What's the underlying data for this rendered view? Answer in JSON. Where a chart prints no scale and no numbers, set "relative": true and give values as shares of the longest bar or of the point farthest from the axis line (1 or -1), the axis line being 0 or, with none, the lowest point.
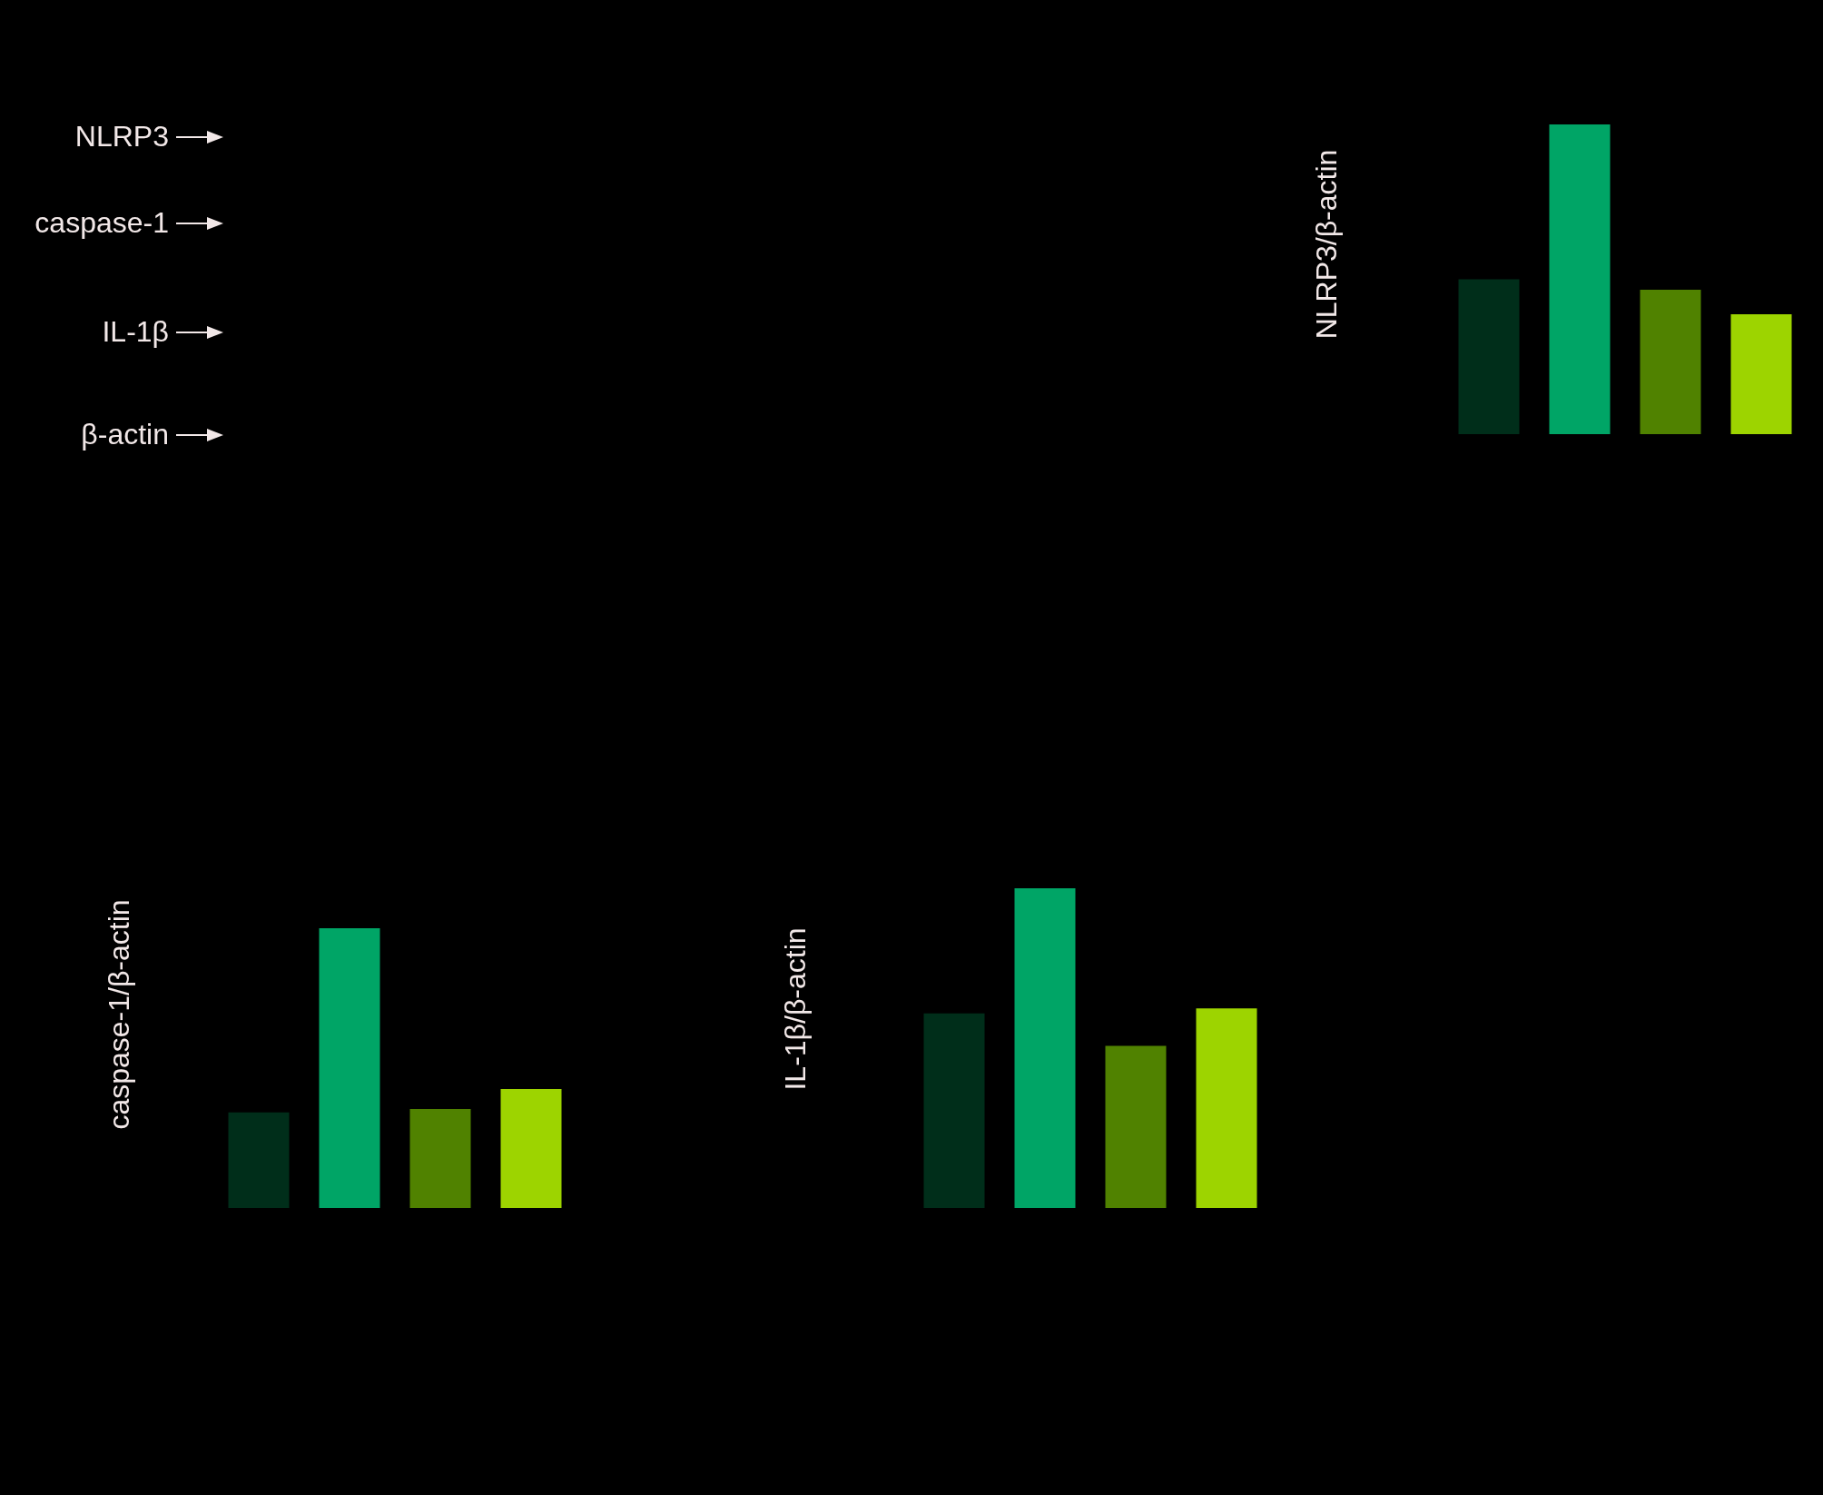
{
  "chart_data": [
    {
      "type": "other",
      "annotations": [
        "NLRP3",
        "caspase-1",
        "IL-1β",
        "β-actin"
      ]
    },
    {
      "type": "bar",
      "ylabel": "NLRP3/β-actin",
      "relative": true,
      "categories": [
        null,
        null,
        null,
        null
      ],
      "values": [
        0.5,
        1,
        0.466,
        0.387
      ],
      "colors": [
        "#002e1a",
        "#00a566",
        "#508200",
        "#9dd400"
      ]
    },
    {
      "type": "bar",
      "ylabel": "caspase-1/β-actin",
      "relative": true,
      "categories": [
        null,
        null,
        null,
        null
      ],
      "values": [
        0.342,
        1,
        0.354,
        0.425
      ],
      "colors": [
        "#002e1a",
        "#00a566",
        "#508200",
        "#9dd400"
      ]
    },
    {
      "type": "bar",
      "ylabel": "IL-1β/β-actin",
      "relative": true,
      "categories": [
        null,
        null,
        null,
        null
      ],
      "values": [
        0.609,
        1,
        0.507,
        0.624
      ],
      "colors": [
        "#002e1a",
        "#00a566",
        "#508200",
        "#9dd400"
      ]
    }
  ]
}
